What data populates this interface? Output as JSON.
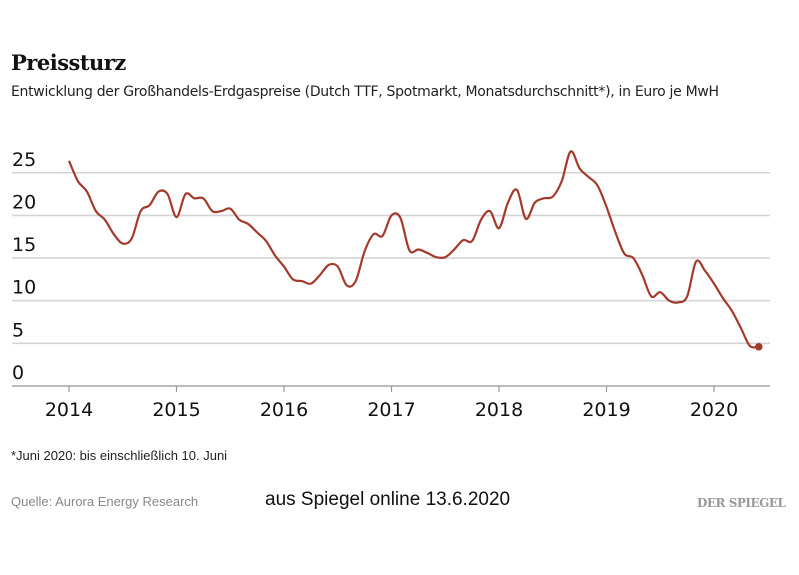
{
  "title": "Preissturz",
  "subtitle": "Entwicklung der Großhandels-Erdgaspreise (Dutch TTF, Spotmarkt, Monatsdurchschnitt*), in Euro je MwH",
  "footnote": "*Juni 2020: bis einschließlich 10. Juni",
  "source": "Quelle: Aurora Energy Research",
  "credit": "aus Spiegel online 13.6.2020",
  "logo": "DER SPIEGEL",
  "chart_data": {
    "type": "line",
    "title": "Preissturz",
    "xlabel": "",
    "ylabel": "",
    "ylim": [
      0,
      27.5
    ],
    "grid": true,
    "line_color": "#a33a2b",
    "y_ticks": [
      "0",
      "5",
      "10",
      "15",
      "20",
      "25"
    ],
    "x_ticks": [
      "2014",
      "2015",
      "2016",
      "2017",
      "2018",
      "2019",
      "2020"
    ],
    "start_month": "2014-01",
    "end_month": "2020-06",
    "values": [
      26.4,
      24.0,
      22.8,
      20.5,
      19.5,
      17.8,
      16.7,
      17.3,
      20.5,
      21.2,
      22.8,
      22.5,
      19.8,
      22.5,
      22.0,
      22.0,
      20.5,
      20.5,
      20.8,
      19.5,
      19.0,
      18.0,
      17.0,
      15.3,
      14.0,
      12.5,
      12.3,
      12.0,
      13.0,
      14.2,
      14.0,
      11.8,
      12.3,
      15.8,
      17.8,
      17.6,
      20.0,
      19.7,
      15.9,
      16.0,
      15.6,
      15.1,
      15.1,
      16.0,
      17.1,
      17.0,
      19.5,
      20.5,
      18.5,
      21.5,
      23.0,
      19.6,
      21.5,
      22.0,
      22.2,
      24.0,
      27.5,
      25.5,
      24.5,
      23.5,
      21.0,
      18.0,
      15.5,
      15.0,
      13.0,
      10.5,
      11.0,
      10.0,
      9.8,
      10.5,
      14.6,
      13.5,
      12.0,
      10.3,
      8.8,
      6.8,
      4.7,
      4.6
    ]
  }
}
